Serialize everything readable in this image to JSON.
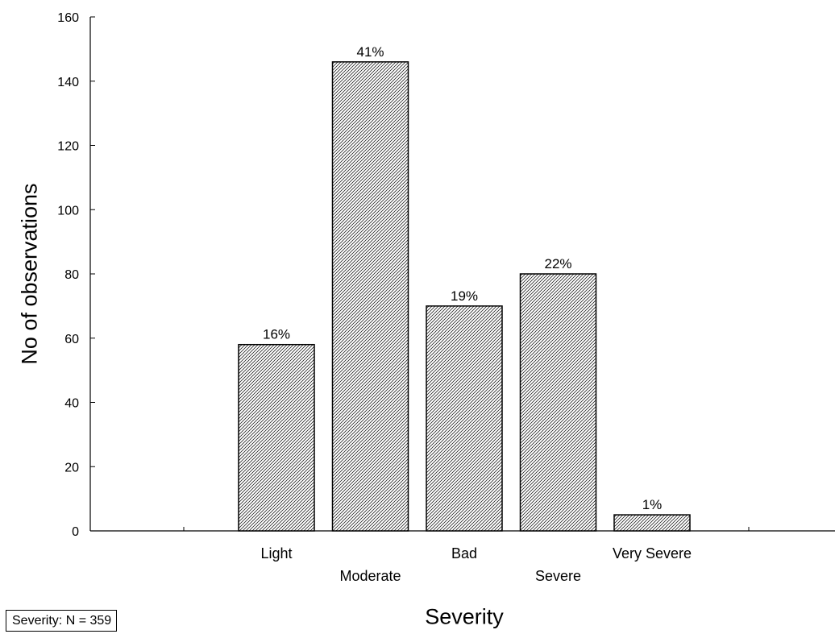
{
  "chart_data": {
    "type": "bar",
    "categories": [
      "Light",
      "Moderate",
      "Bad",
      "Severe",
      "Very Severe"
    ],
    "values": [
      58,
      146,
      70,
      80,
      5
    ],
    "bar_labels": [
      "16%",
      "41%",
      "19%",
      "22%",
      "1%"
    ],
    "ylabel": "No of observations",
    "xlabel": "Severity",
    "ylim": [
      0,
      160
    ],
    "yticks": [
      0,
      20,
      40,
      60,
      80,
      100,
      120,
      140,
      160
    ],
    "grid": false,
    "bar_fill": "hatched"
  },
  "note": "Severity:  N = 359"
}
